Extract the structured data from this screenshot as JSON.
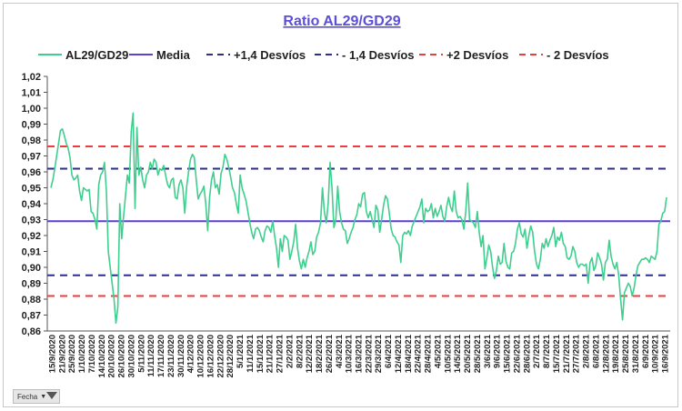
{
  "chart_data": {
    "type": "line",
    "title": "Ratio AL29/GD29",
    "ylim": [
      0.86,
      1.02
    ],
    "ytick_labels": [
      "0,86",
      "0,87",
      "0,88",
      "0,89",
      "0,90",
      "0,91",
      "0,92",
      "0,93",
      "0,94",
      "0,95",
      "0,96",
      "0,97",
      "0,98",
      "0,99",
      "1,00",
      "1,01",
      "1,02"
    ],
    "x_tick_labels": [
      "15/9/2020",
      "21/9/2020",
      "25/9/2020",
      "1/10/2020",
      "7/10/2020",
      "14/10/2020",
      "20/10/2020",
      "26/10/2020",
      "30/10/2020",
      "5/11/2020",
      "11/11/2020",
      "17/11/2020",
      "23/11/2020",
      "30/11/2020",
      "4/12/2020",
      "10/12/2020",
      "16/12/2020",
      "22/12/2020",
      "28/12/2020",
      "5/1/2021",
      "11/1/2021",
      "15/1/2021",
      "21/1/2021",
      "27/1/2021",
      "2/2/2021",
      "8/2/2021",
      "12/2/2021",
      "18/2/2021",
      "26/2/2021",
      "4/3/2021",
      "10/3/2021",
      "16/3/2021",
      "22/3/2021",
      "29/3/2021",
      "6/4/2021",
      "12/4/2021",
      "18/4/2021",
      "22/4/2021",
      "28/4/2021",
      "4/5/2021",
      "10/5/2021",
      "14/5/2021",
      "20/5/2021",
      "28/5/2021",
      "3/6/2021",
      "9/6/2021",
      "15/6/2021",
      "22/6/2021",
      "28/6/2021",
      "2/7/2021",
      "8/7/2021",
      "15/7/2021",
      "21/7/2021",
      "27/7/2021",
      "2/8/2021",
      "6/8/2021",
      "12/8/2021",
      "19/8/2021",
      "25/8/2021",
      "31/8/2021",
      "6/9/2021",
      "10/9/2021",
      "16/9/2021"
    ],
    "legend": [
      "AL29/GD29",
      "Media",
      "+1,4 Desvíos",
      "- 1,4 Desvíos",
      "+2 Desvíos",
      "- 2 Desvíos"
    ],
    "legend_position": "top",
    "grid": false,
    "series": [
      {
        "name": "AL29/GD29",
        "color": "#3ecf8e",
        "values": [
          0.95,
          0.955,
          0.962,
          0.97,
          0.978,
          0.986,
          0.987,
          0.983,
          0.978,
          0.975,
          0.969,
          0.958,
          0.955,
          0.956,
          0.958,
          0.948,
          0.942,
          0.95,
          0.949,
          0.948,
          0.949,
          0.935,
          0.934,
          0.93,
          0.924,
          0.952,
          0.958,
          0.96,
          0.966,
          0.948,
          0.91,
          0.9,
          0.89,
          0.88,
          0.865,
          0.875,
          0.94,
          0.918,
          0.932,
          0.945,
          0.958,
          0.953,
          0.985,
          0.997,
          0.937,
          0.988,
          0.958,
          0.963,
          0.955,
          0.95,
          0.958,
          0.96,
          0.966,
          0.962,
          0.968,
          0.966,
          0.958,
          0.962,
          0.961,
          0.964,
          0.958,
          0.952,
          0.95,
          0.955,
          0.956,
          0.944,
          0.943,
          0.952,
          0.955,
          0.95,
          0.934,
          0.951,
          0.96,
          0.968,
          0.971,
          0.969,
          0.955,
          0.943,
          0.946,
          0.948,
          0.951,
          0.94,
          0.923,
          0.944,
          0.955,
          0.96,
          0.95,
          0.952,
          0.946,
          0.959,
          0.963,
          0.971,
          0.968,
          0.963,
          0.957,
          0.95,
          0.947,
          0.94,
          0.934,
          0.958,
          0.95,
          0.946,
          0.942,
          0.935,
          0.928,
          0.922,
          0.918,
          0.924,
          0.925,
          0.923,
          0.919,
          0.916,
          0.923,
          0.926,
          0.925,
          0.922,
          0.929,
          0.92,
          0.912,
          0.9,
          0.918,
          0.91,
          0.92,
          0.919,
          0.917,
          0.905,
          0.91,
          0.916,
          0.927,
          0.912,
          0.904,
          0.899,
          0.905,
          0.9,
          0.906,
          0.91,
          0.916,
          0.908,
          0.91,
          0.919,
          0.922,
          0.928,
          0.95,
          0.935,
          0.928,
          0.94,
          0.966,
          0.95,
          0.925,
          0.93,
          0.951,
          0.935,
          0.928,
          0.924,
          0.923,
          0.915,
          0.918,
          0.922,
          0.925,
          0.93,
          0.933,
          0.94,
          0.938,
          0.946,
          0.947,
          0.935,
          0.931,
          0.935,
          0.93,
          0.925,
          0.939,
          0.936,
          0.922,
          0.93,
          0.939,
          0.945,
          0.943,
          0.934,
          0.924,
          0.92,
          0.919,
          0.916,
          0.914,
          0.903,
          0.92,
          0.922,
          0.921,
          0.923,
          0.92,
          0.926,
          0.929,
          0.932,
          0.935,
          0.938,
          0.943,
          0.928,
          0.937,
          0.935,
          0.936,
          0.94,
          0.931,
          0.937,
          0.932,
          0.935,
          0.939,
          0.932,
          0.929,
          0.938,
          0.944,
          0.938,
          0.935,
          0.948,
          0.935,
          0.931,
          0.932,
          0.93,
          0.924,
          0.935,
          0.953,
          0.93,
          0.929,
          0.928,
          0.925,
          0.935,
          0.922,
          0.913,
          0.92,
          0.899,
          0.906,
          0.914,
          0.91,
          0.9,
          0.893,
          0.898,
          0.907,
          0.902,
          0.903,
          0.915,
          0.904,
          0.9,
          0.899,
          0.909,
          0.91,
          0.915,
          0.924,
          0.928,
          0.921,
          0.919,
          0.924,
          0.912,
          0.92,
          0.926,
          0.922,
          0.91,
          0.902,
          0.899,
          0.905,
          0.915,
          0.912,
          0.918,
          0.913,
          0.917,
          0.92,
          0.925,
          0.913,
          0.919,
          0.917,
          0.922,
          0.915,
          0.913,
          0.906,
          0.905,
          0.907,
          0.913,
          0.91,
          0.903,
          0.9,
          0.902,
          0.902,
          0.901,
          0.902,
          0.89,
          0.903,
          0.906,
          0.898,
          0.901,
          0.909,
          0.906,
          0.902,
          0.892,
          0.903,
          0.905,
          0.917,
          0.907,
          0.902,
          0.899,
          0.903,
          0.895,
          0.88,
          0.867,
          0.884,
          0.887,
          0.89,
          0.888,
          0.882,
          0.887,
          0.895,
          0.901,
          0.903,
          0.905,
          0.905,
          0.906,
          0.905,
          0.903,
          0.907,
          0.906,
          0.905,
          0.91,
          0.927,
          0.929,
          0.934,
          0.935,
          0.944
        ]
      },
      {
        "name": "Media",
        "color": "#5b3fd9",
        "value": 0.929
      },
      {
        "name": "+1,4 Desvíos",
        "color": "#2e2e8c",
        "value": 0.962
      },
      {
        "name": "- 1,4 Desvíos",
        "color": "#2e2e8c",
        "value": 0.895
      },
      {
        "name": "+2 Desvíos",
        "color": "#ef3b3b",
        "value": 0.976
      },
      {
        "name": "- 2 Desvíos",
        "color": "#ef3b3b",
        "value": 0.882
      }
    ]
  },
  "filter": {
    "label": "Fecha",
    "arrow": "▼"
  }
}
